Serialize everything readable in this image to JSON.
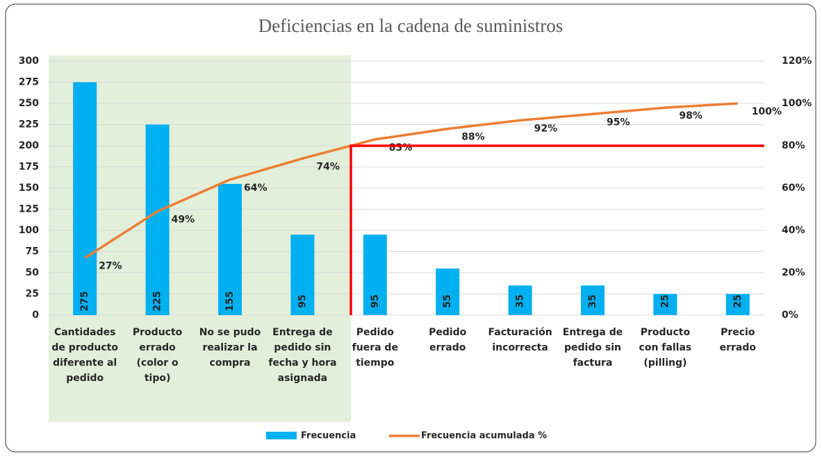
{
  "chart_data": {
    "type": "pareto",
    "title": "Deficiencias en la cadena de suministros",
    "categories": [
      "Cantidades de producto diferente al pedido",
      "Producto errado (color o tipo)",
      "No se pudo realizar la compra",
      "Entrega de pedido sin fecha y hora asignada",
      "Pedido fuera de tiempo",
      "Pedido errado",
      "Facturación incorrecta",
      "Entrega de pedido sin factura",
      "Producto con fallas (pilling)",
      "Precio errado"
    ],
    "series": [
      {
        "name": "Frecuencia",
        "color": "#00b0f0",
        "type": "bar",
        "values": [
          275,
          225,
          155,
          95,
          95,
          55,
          35,
          35,
          25,
          25
        ]
      },
      {
        "name": "Frecuencia acumulada %",
        "color": "#ed7d31",
        "type": "line",
        "axis": "y2",
        "values": [
          27,
          49,
          64,
          74,
          83,
          88,
          92,
          95,
          98,
          100
        ],
        "value_labels": [
          "27%",
          "49%",
          "64%",
          "74%",
          "83%",
          "88%",
          "92%",
          "95%",
          "98%",
          "100%"
        ]
      }
    ],
    "ylim": [
      0,
      300
    ],
    "yticks": [
      0,
      25,
      50,
      75,
      100,
      125,
      150,
      175,
      200,
      225,
      250,
      275,
      300
    ],
    "y2lim": [
      0,
      120
    ],
    "y2ticks": [
      {
        "value": 0,
        "label": "0%"
      },
      {
        "value": 20,
        "label": "20%"
      },
      {
        "value": 40,
        "label": "40%"
      },
      {
        "value": 60,
        "label": "60%"
      },
      {
        "value": 80,
        "label": "80%"
      },
      {
        "value": 100,
        "label": "100%"
      },
      {
        "value": 120,
        "label": "120%"
      }
    ],
    "reference_line": {
      "value": 80,
      "axis": "y2",
      "color": "#ff0000"
    },
    "highlight_color": "#e2efda",
    "grid": true,
    "legend": "bottom"
  }
}
